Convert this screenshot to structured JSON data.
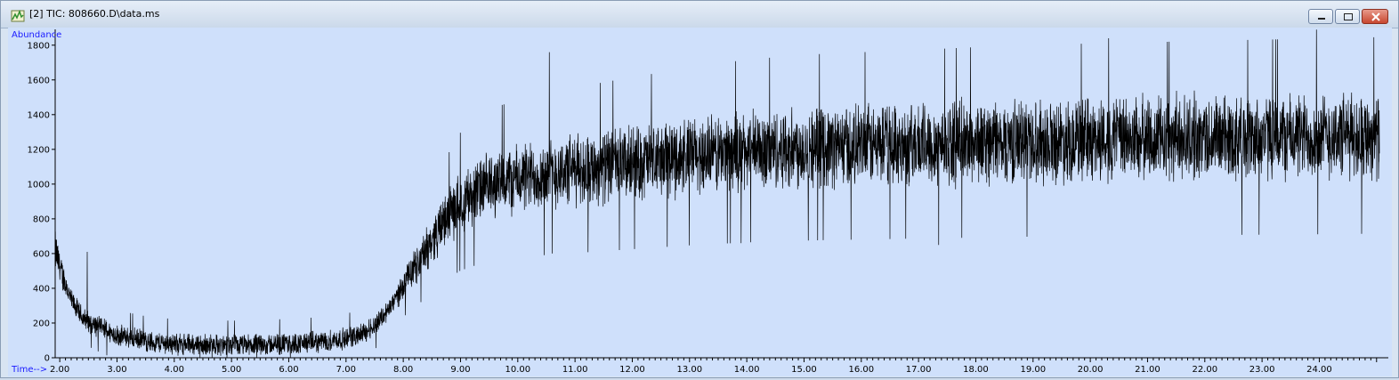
{
  "window": {
    "title": "[2] TIC: 808660.D\\data.ms",
    "icons": [
      "chromatogram-app-icon",
      "minimize-icon",
      "maximize-icon",
      "close-icon"
    ]
  },
  "chart_data": {
    "type": "line",
    "title": "",
    "ylabel": "Abundance",
    "xlabel": "Time-->",
    "xlim": [
      1.92,
      25.05
    ],
    "ylim": [
      0,
      1850
    ],
    "x_ticks": [
      2.0,
      3.0,
      4.0,
      5.0,
      6.0,
      7.0,
      8.0,
      9.0,
      10.0,
      11.0,
      12.0,
      13.0,
      14.0,
      15.0,
      16.0,
      17.0,
      18.0,
      19.0,
      20.0,
      21.0,
      22.0,
      23.0,
      24.0
    ],
    "x_tick_labels": [
      "2.00",
      "3.00",
      "4.00",
      "5.00",
      "6.00",
      "7.00",
      "8.00",
      "9.00",
      "10.00",
      "11.00",
      "12.00",
      "13.00",
      "14.00",
      "15.00",
      "16.00",
      "17.00",
      "18.00",
      "19.00",
      "20.00",
      "21.00",
      "22.00",
      "23.00",
      "24.00"
    ],
    "y_ticks": [
      0,
      200,
      400,
      600,
      800,
      1000,
      1200,
      1400,
      1600,
      1800
    ],
    "y_tick_labels": [
      "0",
      "200",
      "400",
      "600",
      "800",
      "1000",
      "1200",
      "1400",
      "1600",
      "1800"
    ],
    "series": [
      {
        "x": [
          1.92,
          2.0,
          2.2,
          2.4,
          2.6,
          2.8,
          3.0,
          3.3,
          3.6,
          4.0,
          4.5,
          5.0,
          5.5,
          6.0,
          6.5,
          7.0,
          7.3,
          7.5,
          7.8,
          8.0,
          8.2,
          8.4,
          8.6,
          8.8,
          9.0,
          9.3,
          9.6,
          10.0,
          10.5,
          11.0,
          11.5,
          12.0,
          13.0,
          14.0,
          15.0,
          16.0,
          17.0,
          18.0,
          19.0,
          20.0,
          21.0,
          22.0,
          23.0,
          24.0,
          25.0
        ],
        "y": [
          620,
          520,
          330,
          230,
          190,
          160,
          130,
          110,
          90,
          80,
          75,
          70,
          75,
          80,
          90,
          110,
          140,
          190,
          300,
          420,
          520,
          620,
          730,
          820,
          900,
          960,
          1000,
          1030,
          1060,
          1080,
          1100,
          1120,
          1160,
          1190,
          1210,
          1220,
          1230,
          1240,
          1250,
          1255,
          1260,
          1265,
          1270,
          1275,
          1280
        ],
        "spikes": [
          {
            "x": 2.48,
            "y": 610
          },
          {
            "x": 10.55,
            "y": 1760
          },
          {
            "x": 10.6,
            "y": 600
          },
          {
            "x": 13.9,
            "y": 660
          },
          {
            "x": 17.35,
            "y": 650
          },
          {
            "x": 20.32,
            "y": 1840
          },
          {
            "x": 22.75,
            "y": 1830
          },
          {
            "x": 23.95,
            "y": 1890
          }
        ],
        "color": "#000000"
      }
    ],
    "grid": false,
    "legend": "none",
    "background_color": "#cfe0fb",
    "label_color": "#1a1aff"
  }
}
